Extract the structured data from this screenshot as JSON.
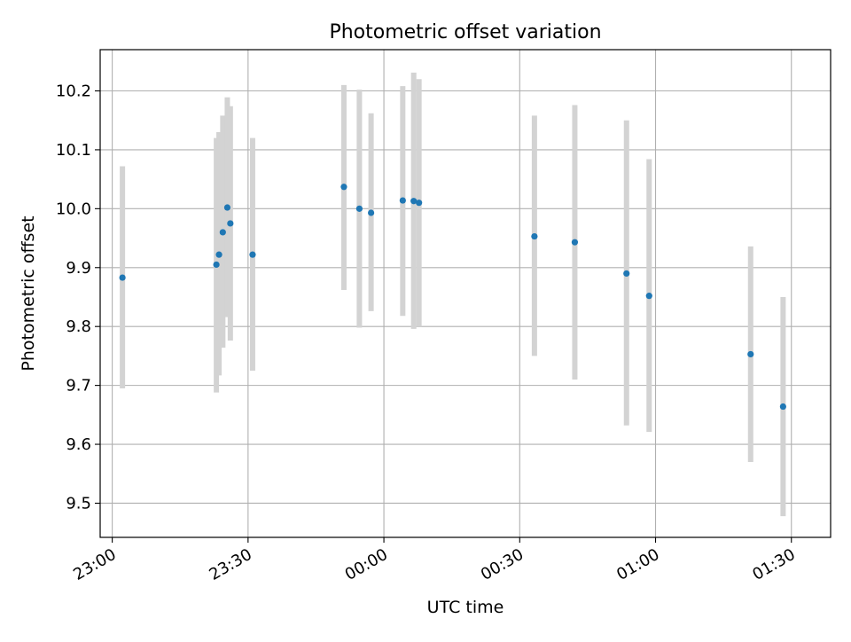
{
  "chart_data": {
    "type": "scatter",
    "title": "Photometric offset variation",
    "xlabel": "UTC time",
    "ylabel": "Photometric offset",
    "x_unit": "UTC",
    "xlim": [
      "22:57:20",
      "01:38:40"
    ],
    "ylim": [
      9.442,
      10.27
    ],
    "grid": true,
    "x_ticks": [
      "23:00",
      "23:30",
      "00:00",
      "00:30",
      "01:00",
      "01:30"
    ],
    "y_ticks": [
      9.5,
      9.6,
      9.7,
      9.8,
      9.9,
      10.0,
      10.1,
      10.2
    ],
    "y_tick_labels": [
      "9.5",
      "9.6",
      "9.7",
      "9.8",
      "9.9",
      "10.0",
      "10.1",
      "10.2"
    ],
    "point_color": "#1f77b4",
    "errorbar_color": "#d3d3d3",
    "points": [
      {
        "time": "23:02:15",
        "y": 9.883,
        "lo": 9.695,
        "hi": 10.072
      },
      {
        "time": "23:23:00",
        "y": 9.905,
        "lo": 9.688,
        "hi": 10.12
      },
      {
        "time": "23:23:35",
        "y": 9.922,
        "lo": 9.717,
        "hi": 10.13
      },
      {
        "time": "23:24:25",
        "y": 9.96,
        "lo": 9.764,
        "hi": 10.158
      },
      {
        "time": "23:25:25",
        "y": 10.002,
        "lo": 9.816,
        "hi": 10.189
      },
      {
        "time": "23:26:05",
        "y": 9.975,
        "lo": 9.776,
        "hi": 10.174
      },
      {
        "time": "23:31:00",
        "y": 9.922,
        "lo": 9.725,
        "hi": 10.12
      },
      {
        "time": "23:51:10",
        "y": 10.037,
        "lo": 9.862,
        "hi": 10.21
      },
      {
        "time": "23:54:35",
        "y": 10.0,
        "lo": 9.798,
        "hi": 10.202
      },
      {
        "time": "23:57:10",
        "y": 9.993,
        "lo": 9.826,
        "hi": 10.162
      },
      {
        "time": "00:04:10",
        "y": 10.014,
        "lo": 9.818,
        "hi": 10.208
      },
      {
        "time": "00:06:35",
        "y": 10.013,
        "lo": 9.796,
        "hi": 10.231
      },
      {
        "time": "00:07:45",
        "y": 10.01,
        "lo": 9.8,
        "hi": 10.22
      },
      {
        "time": "00:33:15",
        "y": 9.953,
        "lo": 9.75,
        "hi": 10.158
      },
      {
        "time": "00:42:10",
        "y": 9.943,
        "lo": 9.71,
        "hi": 10.176
      },
      {
        "time": "00:53:35",
        "y": 9.89,
        "lo": 9.632,
        "hi": 10.15
      },
      {
        "time": "00:58:35",
        "y": 9.852,
        "lo": 9.621,
        "hi": 10.084
      },
      {
        "time": "01:21:00",
        "y": 9.753,
        "lo": 9.57,
        "hi": 9.936
      },
      {
        "time": "01:28:10",
        "y": 9.664,
        "lo": 9.478,
        "hi": 9.85
      }
    ]
  }
}
